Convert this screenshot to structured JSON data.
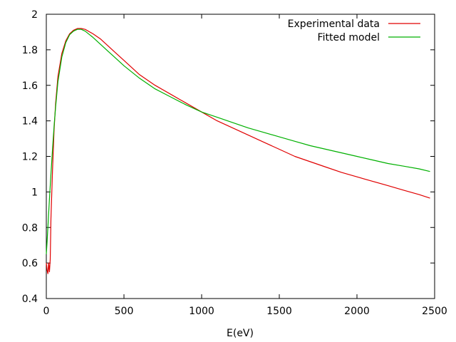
{
  "chart_data": {
    "type": "line",
    "xlabel": "E(eV)",
    "ylabel": "",
    "xlim": [
      0,
      2500
    ],
    "ylim": [
      0.4,
      2.0
    ],
    "x_ticks": [
      0,
      500,
      1000,
      1500,
      2000,
      2500
    ],
    "y_ticks": [
      0.4,
      0.6,
      0.8,
      1.0,
      1.2,
      1.4,
      1.6,
      1.8,
      2.0
    ],
    "x_tick_labels": [
      "0",
      "500",
      "1000",
      "1500",
      "2000",
      "2500"
    ],
    "y_tick_labels": [
      "0.4",
      "0.6",
      "0.8",
      "1",
      "1.2",
      "1.4",
      "1.6",
      "1.8",
      "2"
    ],
    "grid": false,
    "legend_position": "top-right",
    "series": [
      {
        "name": "Experimental data",
        "color": "#e00000",
        "x": [
          0,
          5,
          10,
          15,
          20,
          25,
          30,
          40,
          50,
          60,
          75,
          100,
          125,
          150,
          175,
          200,
          225,
          250,
          300,
          350,
          400,
          450,
          500,
          600,
          700,
          800,
          900,
          1000,
          1100,
          1200,
          1300,
          1400,
          1500,
          1600,
          1700,
          1800,
          1900,
          2000,
          2100,
          2200,
          2300,
          2400,
          2470
        ],
        "y": [
          0.6,
          0.56,
          0.54,
          0.6,
          0.55,
          0.62,
          0.85,
          1.12,
          1.35,
          1.5,
          1.65,
          1.78,
          1.85,
          1.89,
          1.91,
          1.92,
          1.92,
          1.915,
          1.89,
          1.86,
          1.82,
          1.78,
          1.74,
          1.66,
          1.6,
          1.55,
          1.5,
          1.45,
          1.4,
          1.36,
          1.32,
          1.28,
          1.24,
          1.2,
          1.17,
          1.14,
          1.11,
          1.085,
          1.06,
          1.035,
          1.01,
          0.985,
          0.965
        ]
      },
      {
        "name": "Fitted model",
        "color": "#00b000",
        "x": [
          0,
          5,
          10,
          15,
          20,
          30,
          40,
          50,
          60,
          75,
          100,
          125,
          150,
          175,
          200,
          225,
          250,
          300,
          350,
          400,
          450,
          500,
          600,
          700,
          800,
          900,
          1000,
          1100,
          1200,
          1300,
          1400,
          1500,
          1600,
          1700,
          1800,
          1900,
          2000,
          2100,
          2200,
          2300,
          2400,
          2470
        ],
        "y": [
          0.65,
          0.72,
          0.8,
          0.88,
          0.96,
          1.1,
          1.24,
          1.37,
          1.48,
          1.62,
          1.76,
          1.84,
          1.885,
          1.905,
          1.915,
          1.915,
          1.905,
          1.87,
          1.83,
          1.79,
          1.75,
          1.71,
          1.64,
          1.58,
          1.535,
          1.49,
          1.45,
          1.42,
          1.39,
          1.36,
          1.335,
          1.31,
          1.285,
          1.26,
          1.24,
          1.22,
          1.2,
          1.18,
          1.16,
          1.145,
          1.13,
          1.115
        ]
      }
    ]
  }
}
